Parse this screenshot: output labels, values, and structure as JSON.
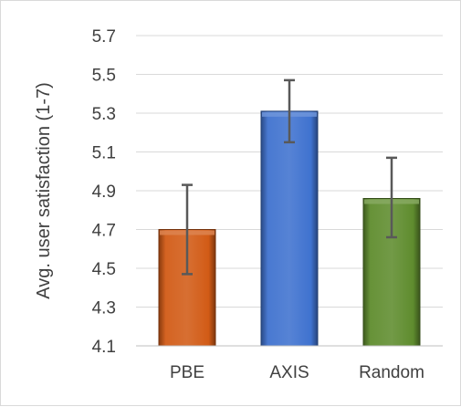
{
  "chart_data": {
    "type": "bar",
    "categories": [
      "PBE",
      "AXIS",
      "Random"
    ],
    "values": [
      4.7,
      5.31,
      4.86
    ],
    "error_bars": {
      "low": [
        4.47,
        5.15,
        4.66
      ],
      "high": [
        4.93,
        5.47,
        5.07
      ]
    },
    "bar_colors": [
      "#d25b16",
      "#3f72cf",
      "#5f8c2e"
    ],
    "title": "",
    "xlabel": "",
    "ylabel": "Avg. user satisfaction (1-7)",
    "ylim": [
      4.1,
      5.7
    ],
    "yticks": [
      "4.1",
      "4.3",
      "4.5",
      "4.7",
      "4.9",
      "5.1",
      "5.3",
      "5.5",
      "5.7"
    ],
    "grid": true,
    "legend": "none"
  }
}
